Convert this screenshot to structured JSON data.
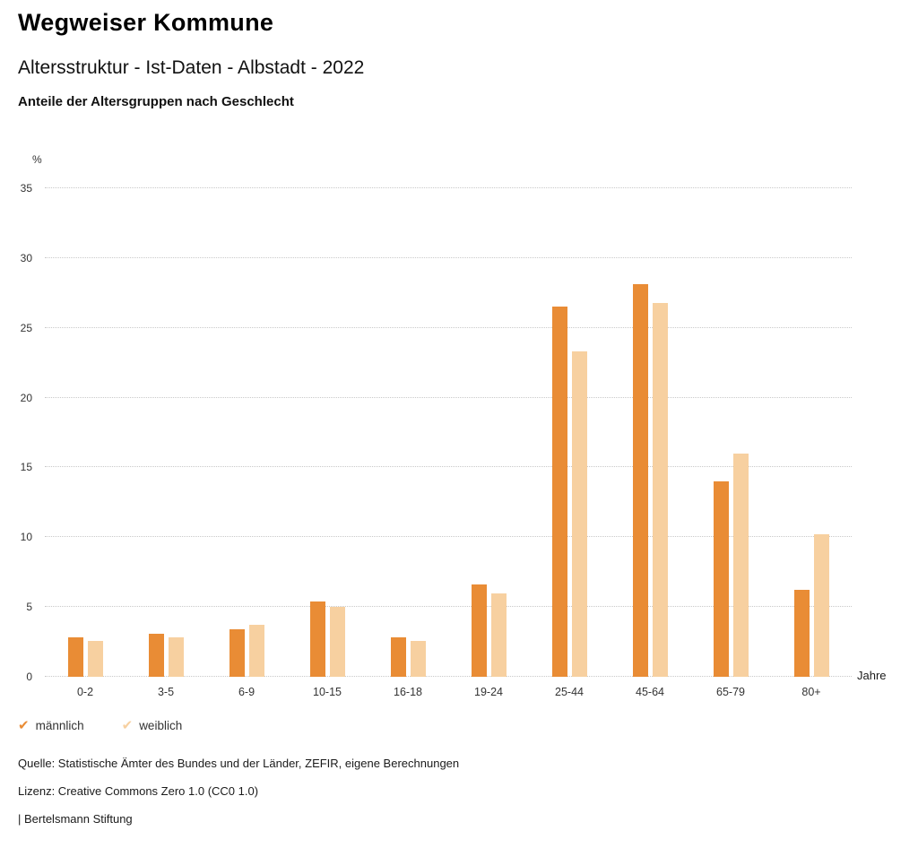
{
  "header": {
    "title": "Wegweiser Kommune",
    "subtitle": "Altersstruktur - Ist-Daten - Albstadt - 2022",
    "heading": "Anteile der Altersgruppen nach Geschlecht"
  },
  "chart_data": {
    "type": "bar",
    "title": "Anteile der Altersgruppen nach Geschlecht",
    "categories": [
      "0-2",
      "3-5",
      "6-9",
      "10-15",
      "16-18",
      "19-24",
      "25-44",
      "45-64",
      "65-79",
      "80+"
    ],
    "series": [
      {
        "name": "männlich",
        "color": "#E98C35",
        "values": [
          2.8,
          3.1,
          3.4,
          5.4,
          2.8,
          6.6,
          26.5,
          28.1,
          14.0,
          6.2
        ]
      },
      {
        "name": "weiblich",
        "color": "#F7D0A0",
        "values": [
          2.6,
          2.8,
          3.7,
          5.0,
          2.6,
          6.0,
          23.3,
          26.8,
          16.0,
          10.2
        ]
      }
    ],
    "xlabel": "Jahre",
    "ylabel": "%",
    "ylim": [
      0,
      35
    ],
    "yticks": [
      0,
      5,
      10,
      15,
      20,
      25,
      30,
      35
    ],
    "grid": "dotted-horizontal",
    "legend_position": "bottom-left"
  },
  "legend": {
    "items": [
      {
        "label": "männlich",
        "color": "#E98C35",
        "marker": "check-icon"
      },
      {
        "label": "weiblich",
        "color": "#F7D0A0",
        "marker": "check-icon"
      }
    ]
  },
  "footer": {
    "source": "Quelle: Statistische Ämter des Bundes und der Länder, ZEFIR, eigene Berechnungen",
    "license": "Lizenz: Creative Commons Zero 1.0 (CC0 1.0)",
    "attribution": "| Bertelsmann Stiftung"
  }
}
